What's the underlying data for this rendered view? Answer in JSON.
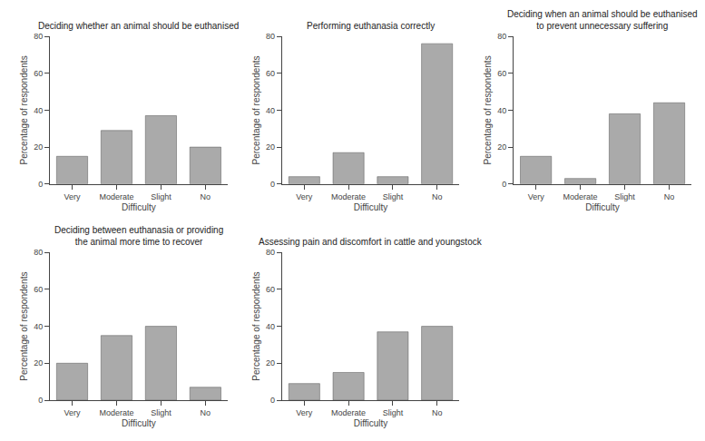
{
  "chart_data": [
    {
      "type": "bar",
      "title": "Deciding whether an animal should be euthanised",
      "categories": [
        "Very",
        "Moderate",
        "Slight",
        "No"
      ],
      "values": [
        15,
        29,
        37,
        20
      ],
      "color": "#AAAAAA",
      "xlabel": "Difficulty",
      "ylabel": "Percentage of respondents",
      "ylim": [
        0,
        80
      ],
      "yticks": [
        0,
        20,
        40,
        60,
        80
      ],
      "grid": false
    },
    {
      "type": "bar",
      "title": "Performing euthanasia correctly",
      "categories": [
        "Very",
        "Moderate",
        "Slight",
        "No"
      ],
      "values": [
        4,
        17,
        4,
        76
      ],
      "color": "#AAAAAA",
      "xlabel": "Difficulty",
      "ylabel": "Percentage of respondents",
      "ylim": [
        0,
        80
      ],
      "yticks": [
        0,
        20,
        40,
        60,
        80
      ],
      "grid": false
    },
    {
      "type": "bar",
      "title": "Deciding when an animal should be euthanised\nto prevent unnecessary suffering",
      "categories": [
        "Very",
        "Moderate",
        "Slight",
        "No"
      ],
      "values": [
        15,
        3,
        38,
        44
      ],
      "color": "#AAAAAA",
      "xlabel": "Difficulty",
      "ylabel": "Percentage of respondents",
      "ylim": [
        0,
        80
      ],
      "yticks": [
        0,
        20,
        40,
        60,
        80
      ],
      "grid": false
    },
    {
      "type": "bar",
      "title": "Deciding between euthanasia or providing\nthe animal more time to recover",
      "categories": [
        "Very",
        "Moderate",
        "Slight",
        "No"
      ],
      "values": [
        20,
        35,
        40,
        7
      ],
      "color": "#AAAAAA",
      "xlabel": "Difficulty",
      "ylabel": "Percentage of respondents",
      "ylim": [
        0,
        80
      ],
      "yticks": [
        0,
        20,
        40,
        60,
        80
      ],
      "grid": false
    },
    {
      "type": "bar",
      "title": "Assessing pain and discomfort in cattle and youngstock",
      "categories": [
        "Very",
        "Moderate",
        "Slight",
        "No"
      ],
      "values": [
        9,
        15,
        37,
        40
      ],
      "color": "#AAAAAA",
      "xlabel": "Difficulty",
      "ylabel": "Percentage of respondents",
      "ylim": [
        0,
        80
      ],
      "yticks": [
        0,
        20,
        40,
        60,
        80
      ],
      "grid": false
    }
  ]
}
